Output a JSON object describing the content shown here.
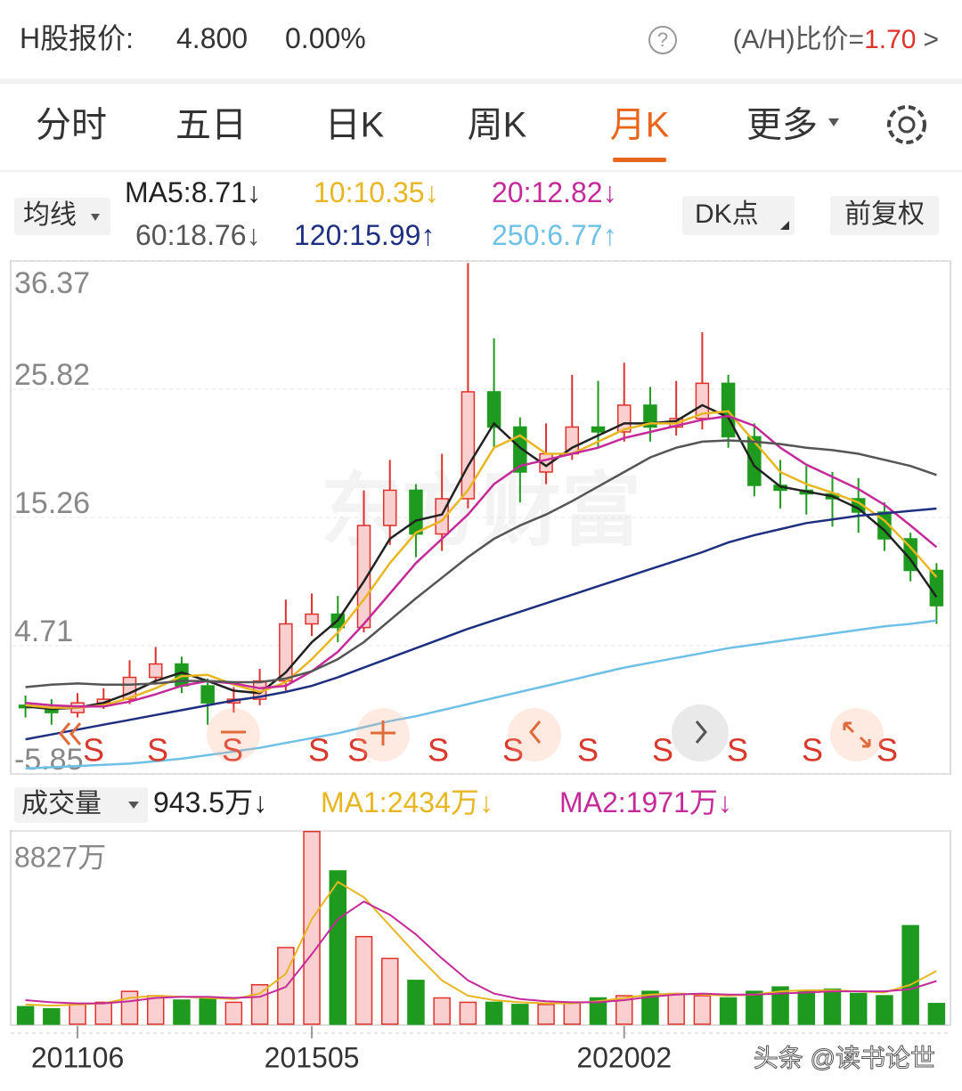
{
  "header": {
    "label": "H股报价:",
    "price": "4.800",
    "change": "0.00%",
    "help": "?",
    "ratio_label": "(A/H)比价=",
    "ratio": "1.70",
    "more": ">"
  },
  "tabs": [
    "分时",
    "五日",
    "日K",
    "周K",
    "月K",
    "更多"
  ],
  "active_tab": 4,
  "buttons": {
    "ma": "均线",
    "dk": "DK点",
    "adjust": "前复权",
    "volume": "成交量"
  },
  "watermark": "东方财富",
  "footer": "头条 @读书论世",
  "chart_data": [
    {
      "type": "candlestick",
      "ylim": [
        -5.85,
        36.37
      ],
      "yticks": [
        36.37,
        25.82,
        15.26,
        4.71,
        -5.85
      ],
      "grid": true,
      "up_color": "#e0302a",
      "down_color": "#1e9a1e",
      "separator": ":",
      "open": [
        -0.2,
        -0.4,
        -0.8,
        0.0,
        0.3,
        2.1,
        3.2,
        1.4,
        0.0,
        0.3,
        1.8,
        6.5,
        7.3,
        6.2,
        14.6,
        17.5,
        13.9,
        16.8,
        25.6,
        22.7,
        19.0,
        20.5,
        22.7,
        22.3,
        24.5,
        22.7,
        23.4,
        26.3,
        21.9,
        17.9,
        17.5,
        17.2,
        16.8,
        15.7,
        13.5,
        10.9
      ],
      "high": [
        0.6,
        0.3,
        0.8,
        1.2,
        3.5,
        4.6,
        3.8,
        2.0,
        1.3,
        2.8,
        8.5,
        9.0,
        8.8,
        17.5,
        20.0,
        18.0,
        20.5,
        36.2,
        30.0,
        23.5,
        23.0,
        27.0,
        26.5,
        28.0,
        26.0,
        26.5,
        30.5,
        27.0,
        23.0,
        20.0,
        19.5,
        19.0,
        18.5,
        16.5,
        14.0,
        11.5
      ],
      "low": [
        -1.2,
        -1.8,
        -1.2,
        -0.5,
        -0.1,
        1.5,
        0.8,
        -1.8,
        -0.8,
        -0.2,
        1.0,
        5.5,
        5.0,
        5.8,
        13.0,
        12.0,
        12.5,
        16.0,
        21.0,
        16.5,
        18.0,
        20.0,
        21.0,
        21.5,
        21.5,
        22.0,
        22.5,
        21.0,
        17.0,
        16.0,
        15.5,
        14.5,
        14.0,
        12.5,
        10.0,
        6.5
      ],
      "close": [
        -0.4,
        -0.8,
        0.0,
        0.3,
        2.1,
        3.2,
        1.4,
        0.0,
        0.3,
        1.8,
        6.5,
        7.3,
        6.2,
        14.6,
        17.5,
        13.9,
        16.8,
        25.6,
        22.7,
        19.0,
        20.5,
        22.7,
        22.3,
        24.5,
        22.7,
        23.4,
        26.3,
        21.9,
        17.9,
        17.5,
        17.2,
        16.8,
        15.7,
        13.5,
        10.9,
        8.0
      ],
      "series": [
        {
          "name": "MA5",
          "color": "#222222",
          "trend": "↓",
          "values": [
            -0.3,
            -0.5,
            -0.4,
            0.0,
            0.8,
            1.8,
            2.5,
            1.8,
            1.0,
            0.8,
            2.5,
            5.0,
            6.8,
            10.0,
            13.5,
            15.0,
            15.5,
            19.5,
            23.0,
            21.0,
            19.5,
            21.0,
            22.0,
            23.0,
            23.0,
            23.2,
            24.5,
            23.5,
            19.5,
            17.8,
            17.4,
            17.0,
            16.0,
            14.2,
            11.8,
            8.71
          ]
        },
        {
          "name": "10",
          "color": "#e8b620",
          "trend": "↓",
          "values": [
            -0.2,
            -0.4,
            -0.4,
            -0.2,
            0.4,
            1.2,
            2.2,
            2.3,
            1.5,
            0.9,
            1.7,
            3.6,
            5.8,
            8.5,
            11.5,
            14.0,
            15.0,
            17.5,
            21.0,
            22.0,
            20.5,
            20.5,
            21.5,
            22.5,
            23.0,
            23.0,
            23.8,
            24.0,
            21.5,
            19.0,
            18.0,
            17.3,
            16.5,
            15.0,
            12.8,
            10.35
          ]
        },
        {
          "name": "20",
          "color": "#c52a9a",
          "trend": "↓",
          "values": [
            0.0,
            -0.2,
            -0.3,
            -0.3,
            0.1,
            0.7,
            1.4,
            1.8,
            1.6,
            1.2,
            1.4,
            2.6,
            4.2,
            6.5,
            9.0,
            11.5,
            13.5,
            15.5,
            18.0,
            19.5,
            20.0,
            20.5,
            21.0,
            21.8,
            22.3,
            22.8,
            23.3,
            23.6,
            22.8,
            21.0,
            19.6,
            18.6,
            17.6,
            16.3,
            14.6,
            12.82
          ]
        },
        {
          "name": "60",
          "color": "#555555",
          "trend": "↓",
          "values": [
            1.3,
            1.5,
            1.6,
            1.5,
            1.5,
            1.6,
            1.8,
            1.8,
            1.7,
            1.7,
            2.0,
            2.6,
            3.6,
            5.0,
            6.8,
            8.6,
            10.3,
            12.0,
            13.5,
            14.6,
            15.5,
            16.6,
            17.8,
            19.0,
            20.2,
            21.0,
            21.5,
            21.6,
            21.5,
            21.3,
            21.0,
            20.8,
            20.5,
            20.0,
            19.5,
            18.76
          ]
        },
        {
          "name": "120",
          "color": "#1f2f80",
          "trend": "↑",
          "values": [
            -3.0,
            -2.6,
            -2.2,
            -1.8,
            -1.4,
            -1.0,
            -0.6,
            -0.2,
            0.2,
            0.5,
            0.9,
            1.4,
            2.1,
            2.9,
            3.7,
            4.5,
            5.3,
            6.1,
            6.8,
            7.5,
            8.2,
            8.9,
            9.6,
            10.3,
            11.0,
            11.7,
            12.4,
            13.2,
            13.8,
            14.3,
            14.8,
            15.1,
            15.4,
            15.6,
            15.8,
            15.99
          ]
        },
        {
          "name": "250",
          "color": "#6ec0e6",
          "trend": "↑",
          "values": [
            -5.4,
            -5.3,
            -5.2,
            -5.1,
            -5.0,
            -4.8,
            -4.6,
            -4.3,
            -4.0,
            -3.7,
            -3.3,
            -2.9,
            -2.5,
            -2.0,
            -1.5,
            -1.1,
            -0.6,
            -0.1,
            0.4,
            0.9,
            1.4,
            1.9,
            2.4,
            2.9,
            3.3,
            3.7,
            4.1,
            4.5,
            4.8,
            5.1,
            5.4,
            5.7,
            6.0,
            6.3,
            6.5,
            6.77
          ]
        }
      ],
      "signals": [
        "S",
        "S",
        "S",
        "S",
        "S",
        "S",
        "S",
        "S",
        "S",
        "S",
        "S",
        "S"
      ]
    },
    {
      "type": "bar",
      "ylim": [
        0,
        8827
      ],
      "yticks": [
        {
          "value": 8827,
          "label": "8827万"
        }
      ],
      "unit": "万",
      "trend": "↓",
      "categories": [
        null,
        null,
        "201106",
        null,
        null,
        null,
        null,
        null,
        null,
        null,
        null,
        "201505",
        null,
        null,
        null,
        null,
        null,
        null,
        null,
        null,
        null,
        null,
        null,
        "202002",
        null,
        null,
        null,
        null,
        null,
        null,
        null,
        null,
        null,
        null,
        null,
        null
      ],
      "values": [
        800,
        700,
        900,
        1000,
        1500,
        1300,
        1100,
        1200,
        1000,
        1800,
        3500,
        8800,
        7000,
        4000,
        3000,
        2000,
        1200,
        1000,
        1000,
        900,
        900,
        1000,
        1200,
        1300,
        1500,
        1400,
        1300,
        1200,
        1500,
        1700,
        1500,
        1600,
        1400,
        1300,
        4500,
        943.5
      ],
      "series": [
        {
          "name": "MA1",
          "color": "#e8b620",
          "trend": "↓",
          "values": [
            900,
            850,
            900,
            950,
            1200,
            1300,
            1250,
            1200,
            1150,
            1400,
            2300,
            4800,
            6500,
            5800,
            4500,
            3200,
            2000,
            1300,
            1100,
            1000,
            950,
            950,
            1050,
            1200,
            1350,
            1400,
            1350,
            1300,
            1350,
            1500,
            1550,
            1550,
            1500,
            1450,
            1800,
            2434
          ]
        },
        {
          "name": "MA2",
          "color": "#c52a9a",
          "trend": "↓",
          "values": [
            1100,
            1000,
            950,
            950,
            1050,
            1200,
            1250,
            1250,
            1200,
            1250,
            1700,
            3200,
            4800,
            5600,
            5000,
            4100,
            3000,
            2000,
            1400,
            1150,
            1050,
            1000,
            1000,
            1100,
            1250,
            1350,
            1400,
            1350,
            1350,
            1400,
            1450,
            1500,
            1500,
            1500,
            1600,
            1971
          ]
        }
      ]
    }
  ]
}
